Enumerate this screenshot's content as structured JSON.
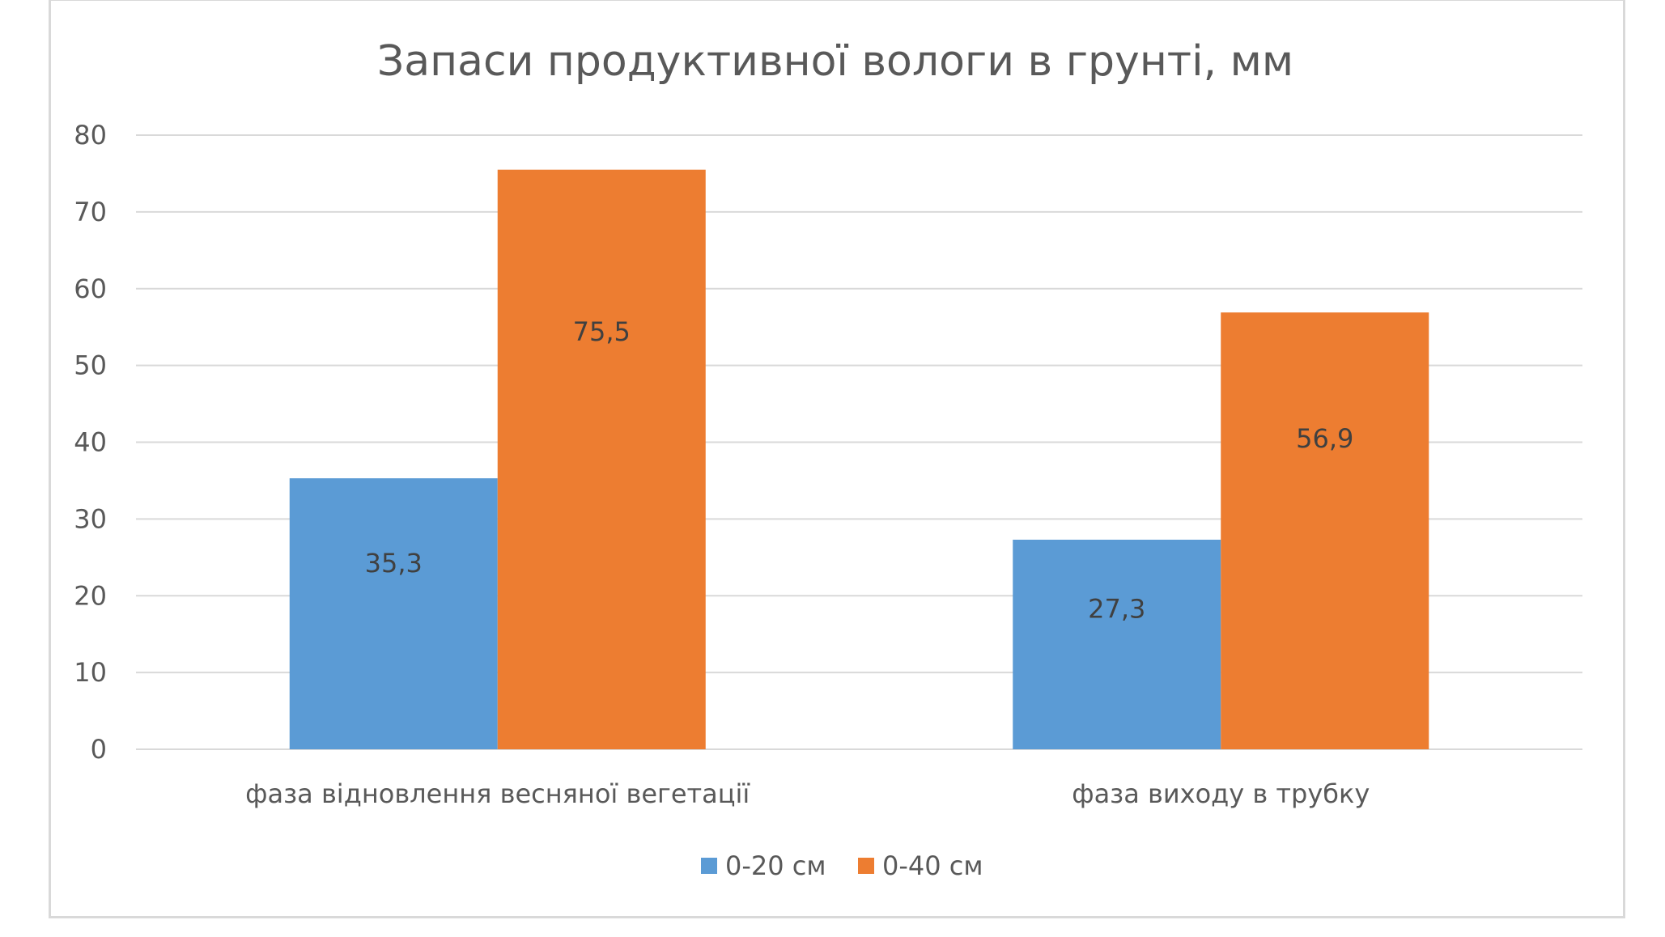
{
  "chart_data": {
    "type": "bar",
    "title": "Запаси продуктивної вологи в грунті, мм",
    "categories": [
      "фаза відновлення весняної вегетації",
      "фаза виходу в трубку"
    ],
    "series": [
      {
        "name": "0-20 см",
        "values": [
          35.3,
          27.3
        ],
        "labels": [
          "35,3",
          "27,3"
        ],
        "color": "#5b9bd5"
      },
      {
        "name": "0-40 см",
        "values": [
          75.5,
          56.9
        ],
        "labels": [
          "75,5",
          "56,9"
        ],
        "color": "#ed7d31"
      }
    ],
    "ylim": [
      0,
      80
    ],
    "yticks": [
      0,
      10,
      20,
      30,
      40,
      50,
      60,
      70,
      80
    ],
    "grid": true,
    "legend_position": "bottom",
    "gridline_color": "#d9d9d9"
  }
}
